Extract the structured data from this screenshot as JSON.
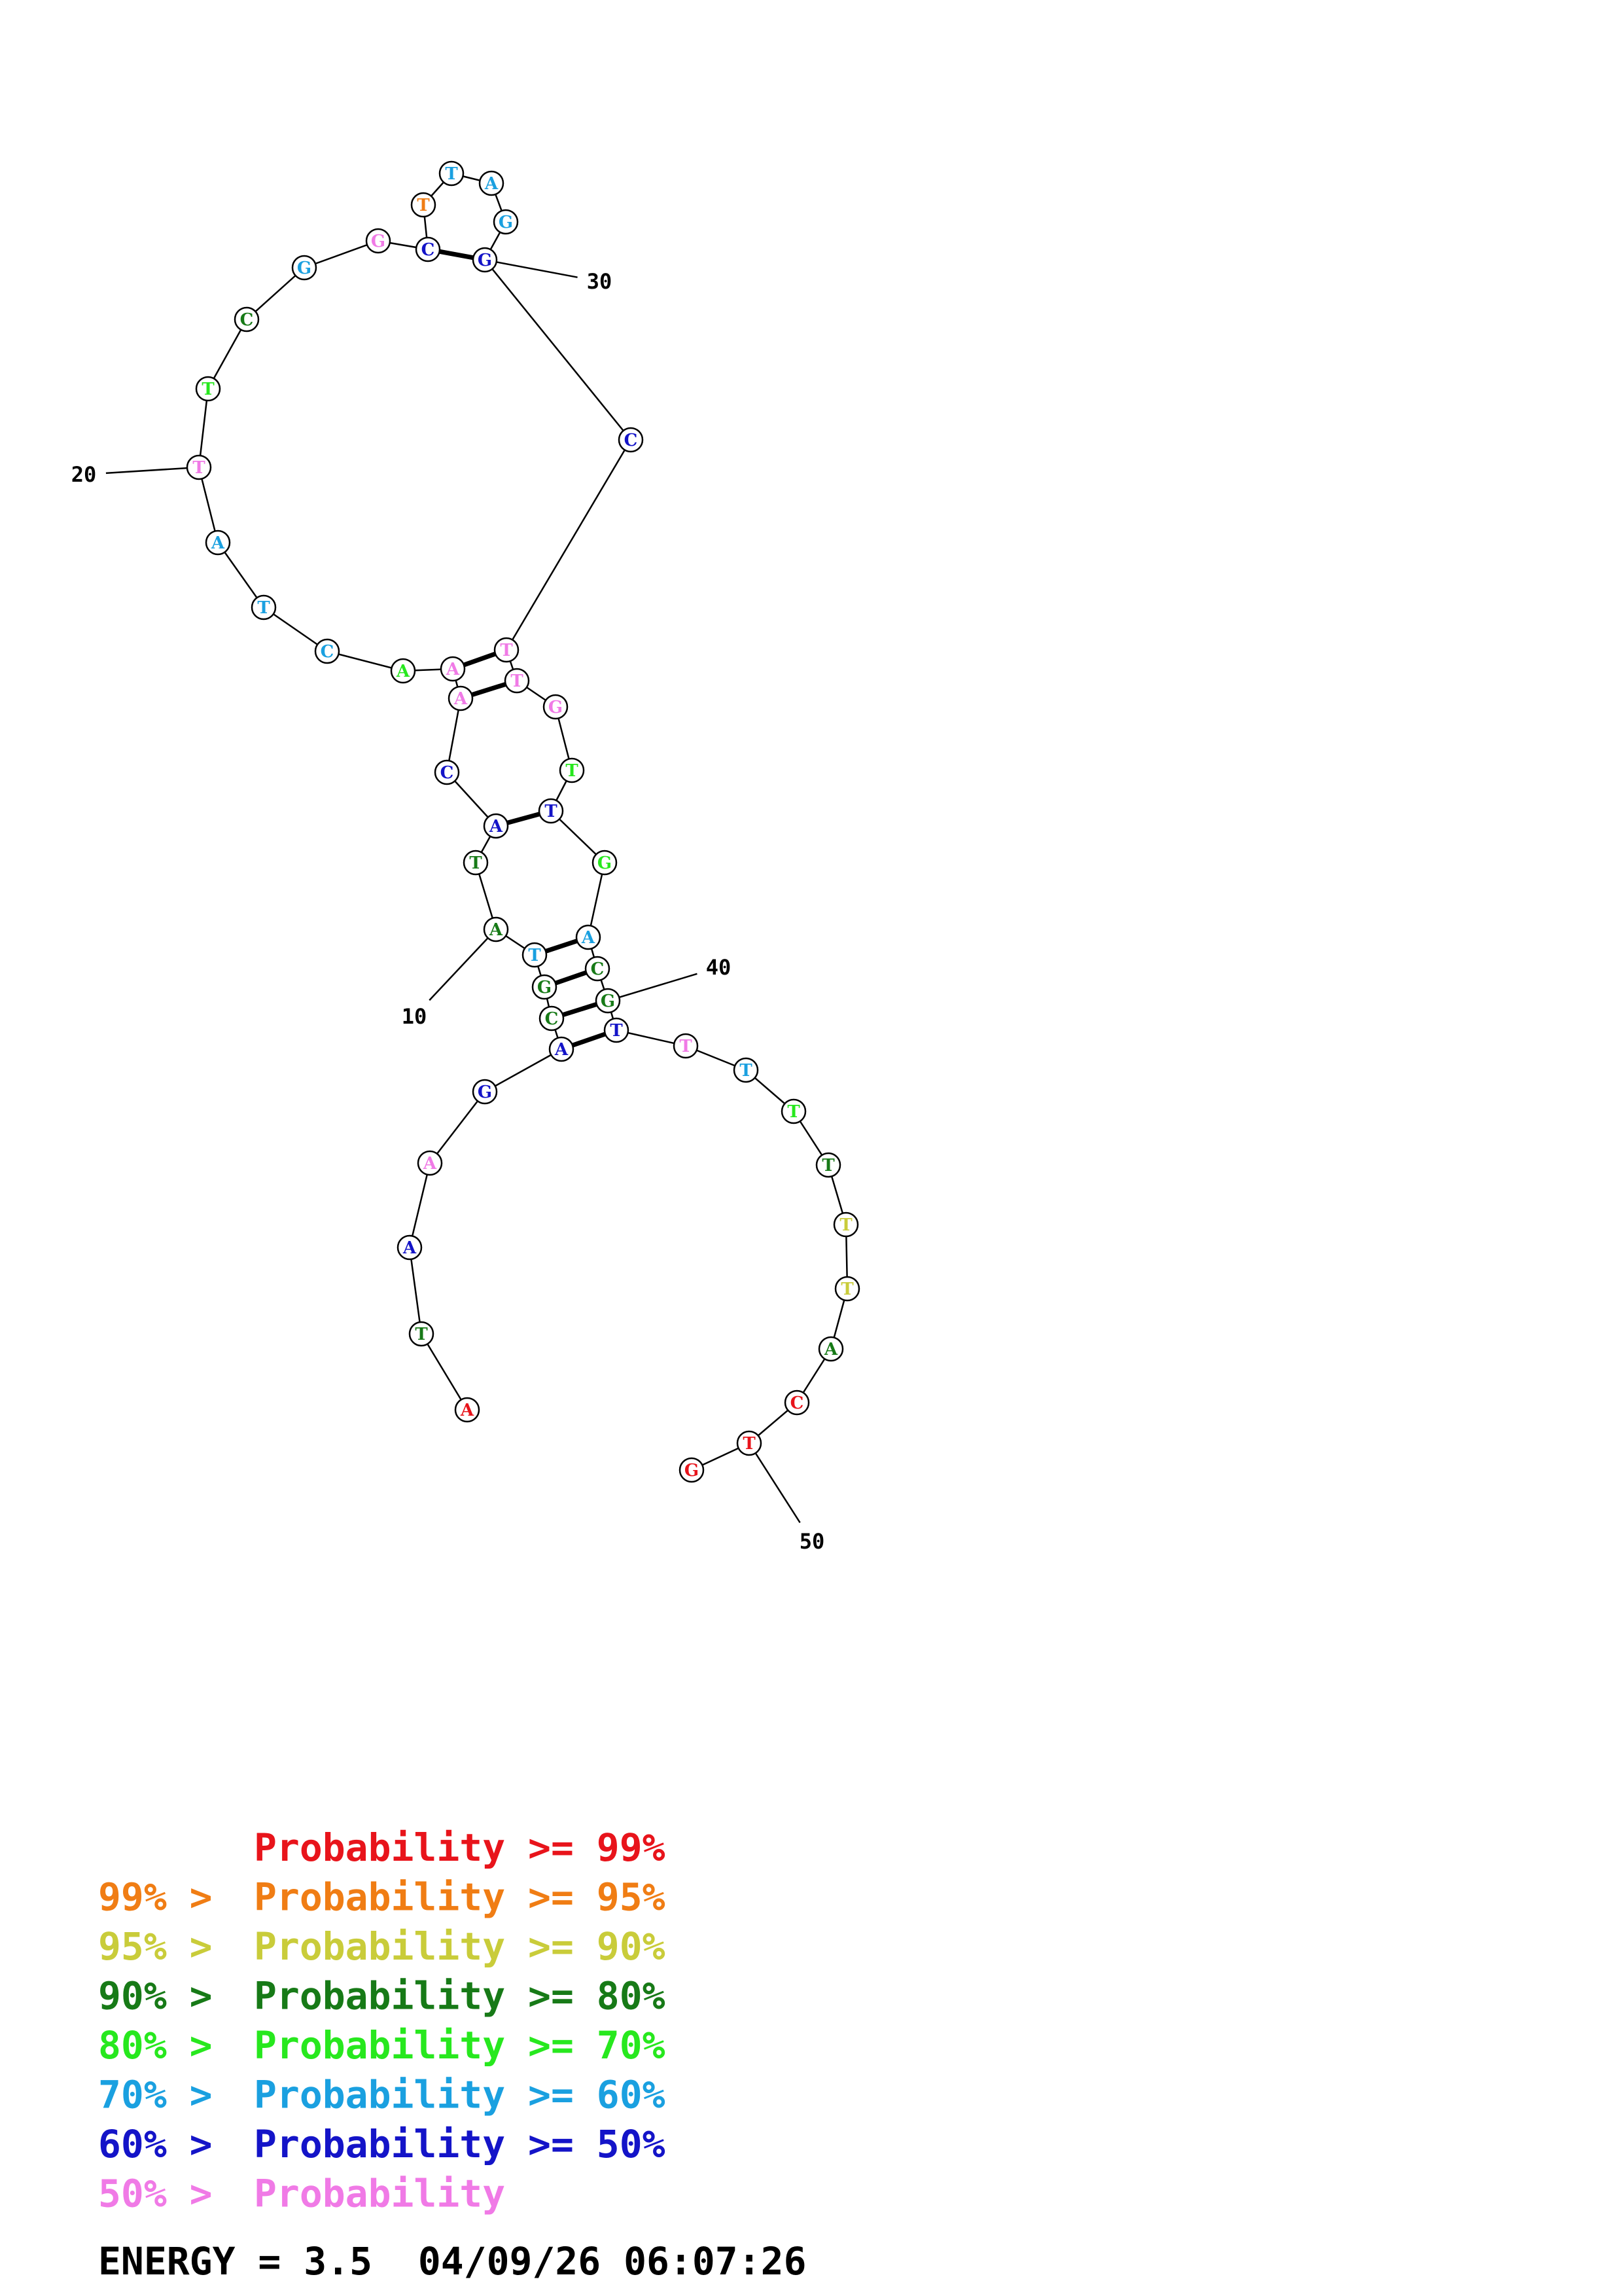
{
  "colors": {
    "p99": "#e8141b",
    "p95": "#f07d14",
    "p90": "#c9cc3a",
    "p80": "#177a17",
    "p70": "#27e81e",
    "p60": "#1aa0e0",
    "p50": "#1414c8",
    "plow": "#f07ae6",
    "ink": "#000000"
  },
  "nucleotides": [
    {
      "i": 1,
      "base": "A",
      "c": "p99"
    },
    {
      "i": 2,
      "base": "T",
      "c": "p80"
    },
    {
      "i": 3,
      "base": "A",
      "c": "p50"
    },
    {
      "i": 4,
      "base": "A",
      "c": "plow"
    },
    {
      "i": 5,
      "base": "G",
      "c": "p50"
    },
    {
      "i": 6,
      "base": "A",
      "c": "p50"
    },
    {
      "i": 7,
      "base": "C",
      "c": "p80"
    },
    {
      "i": 8,
      "base": "G",
      "c": "p80"
    },
    {
      "i": 9,
      "base": "T",
      "c": "p60"
    },
    {
      "i": 10,
      "base": "A",
      "c": "p80"
    },
    {
      "i": 11,
      "base": "T",
      "c": "p80"
    },
    {
      "i": 12,
      "base": "A",
      "c": "p50"
    },
    {
      "i": 13,
      "base": "C",
      "c": "p50"
    },
    {
      "i": 14,
      "base": "A",
      "c": "plow"
    },
    {
      "i": 15,
      "base": "A",
      "c": "plow"
    },
    {
      "i": 16,
      "base": "A",
      "c": "p70"
    },
    {
      "i": 17,
      "base": "C",
      "c": "p60"
    },
    {
      "i": 18,
      "base": "T",
      "c": "p60"
    },
    {
      "i": 19,
      "base": "A",
      "c": "p60"
    },
    {
      "i": 20,
      "base": "T",
      "c": "plow"
    },
    {
      "i": 21,
      "base": "T",
      "c": "p70"
    },
    {
      "i": 22,
      "base": "C",
      "c": "p80"
    },
    {
      "i": 23,
      "base": "G",
      "c": "p60"
    },
    {
      "i": 24,
      "base": "G",
      "c": "plow"
    },
    {
      "i": 25,
      "base": "C",
      "c": "p50"
    },
    {
      "i": 26,
      "base": "T",
      "c": "p95"
    },
    {
      "i": 27,
      "base": "T",
      "c": "p60"
    },
    {
      "i": 28,
      "base": "A",
      "c": "p60"
    },
    {
      "i": 29,
      "base": "G",
      "c": "p60"
    },
    {
      "i": 30,
      "base": "G",
      "c": "p50"
    },
    {
      "i": 31,
      "base": "C",
      "c": "p50"
    },
    {
      "i": 32,
      "base": "T",
      "c": "plow"
    },
    {
      "i": 33,
      "base": "T",
      "c": "plow"
    },
    {
      "i": 34,
      "base": "G",
      "c": "plow"
    },
    {
      "i": 35,
      "base": "T",
      "c": "p70"
    },
    {
      "i": 36,
      "base": "T",
      "c": "p50"
    },
    {
      "i": 37,
      "base": "G",
      "c": "p70"
    },
    {
      "i": 38,
      "base": "A",
      "c": "p60"
    },
    {
      "i": 39,
      "base": "C",
      "c": "p80"
    },
    {
      "i": 40,
      "base": "G",
      "c": "p80"
    },
    {
      "i": 41,
      "base": "T",
      "c": "p50"
    },
    {
      "i": 42,
      "base": "T",
      "c": "plow"
    },
    {
      "i": 43,
      "base": "T",
      "c": "p60"
    },
    {
      "i": 44,
      "base": "T",
      "c": "p70"
    },
    {
      "i": 45,
      "base": "T",
      "c": "p80"
    },
    {
      "i": 46,
      "base": "T",
      "c": "p90"
    },
    {
      "i": 47,
      "base": "T",
      "c": "p90"
    },
    {
      "i": 48,
      "base": "A",
      "c": "p80"
    },
    {
      "i": 49,
      "base": "C",
      "c": "p99"
    },
    {
      "i": 50,
      "base": "T",
      "c": "p99"
    },
    {
      "i": 51,
      "base": "G",
      "c": "p99"
    }
  ],
  "base_pairs": [
    [
      6,
      41
    ],
    [
      7,
      40
    ],
    [
      8,
      39
    ],
    [
      9,
      38
    ],
    [
      12,
      36
    ],
    [
      14,
      33
    ],
    [
      15,
      32
    ],
    [
      25,
      30
    ]
  ],
  "position_labels": [
    {
      "i": 10,
      "text": "10"
    },
    {
      "i": 20,
      "text": "20"
    },
    {
      "i": 30,
      "text": "30"
    },
    {
      "i": 40,
      "text": "40"
    },
    {
      "i": 50,
      "text": "50"
    }
  ],
  "legend": [
    {
      "prefix": "",
      "text": "Probability >= 99%",
      "c": "p99"
    },
    {
      "prefix": "99% > ",
      "text": "Probability >= 95%",
      "c": "p95"
    },
    {
      "prefix": "95% > ",
      "text": "Probability >= 90%",
      "c": "p90"
    },
    {
      "prefix": "90% > ",
      "text": "Probability >= 80%",
      "c": "p80"
    },
    {
      "prefix": "80% > ",
      "text": "Probability >= 70%",
      "c": "p70"
    },
    {
      "prefix": "70% > ",
      "text": "Probability >= 60%",
      "c": "p60"
    },
    {
      "prefix": "60% > ",
      "text": "Probability >= 50%",
      "c": "p50"
    },
    {
      "prefix": "50% > ",
      "text": "Probability",
      "c": "plow"
    }
  ],
  "energy_line": "ENERGY = 3.5  04/09/26 06:07:26"
}
